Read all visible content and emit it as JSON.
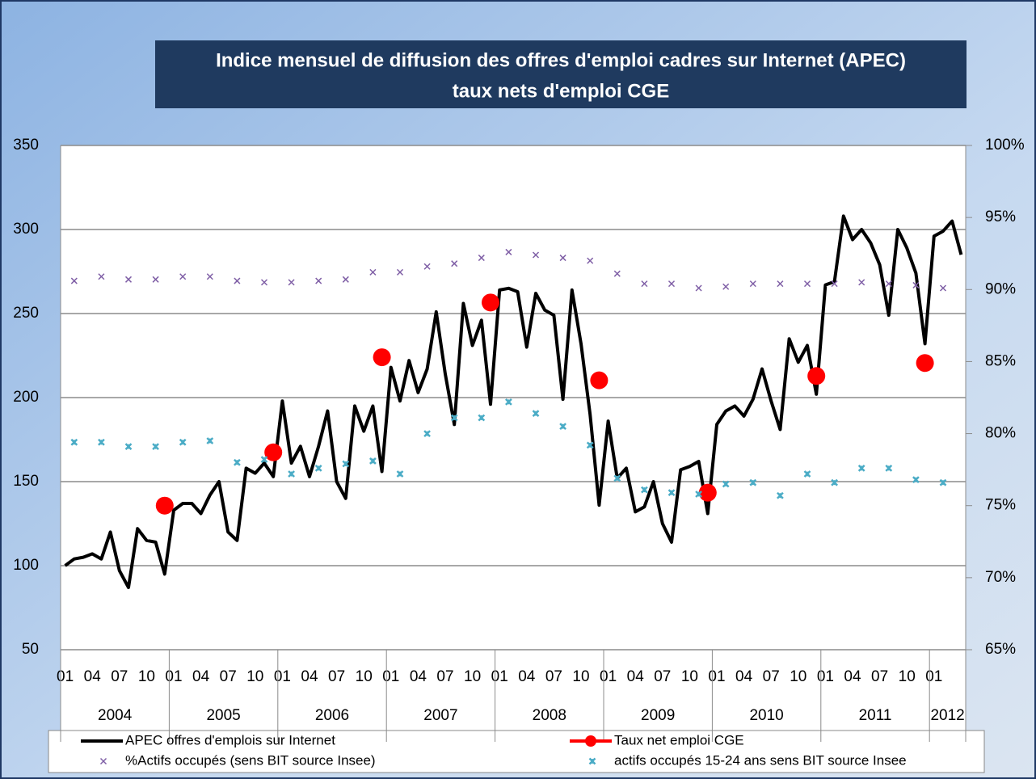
{
  "chart_data": {
    "type": "line",
    "title": [
      "Indice mensuel de diffusion des offres d'emploi cadres sur Internet  (APEC)",
      "taux nets d'emploi CGE"
    ],
    "categories": [
      "01",
      null,
      null,
      "04",
      null,
      null,
      "07",
      null,
      null,
      "10",
      null,
      null,
      "01",
      null,
      null,
      "04",
      null,
      null,
      "07",
      null,
      null,
      "10",
      null,
      null,
      "01",
      null,
      null,
      "04",
      null,
      null,
      "07",
      null,
      null,
      "10",
      null,
      null,
      "01",
      null,
      null,
      "04",
      null,
      null,
      "07",
      null,
      null,
      "10",
      null,
      null,
      "01",
      null,
      null,
      "04",
      null,
      null,
      "07",
      null,
      null,
      "10",
      null,
      null,
      "01",
      null,
      null,
      "04",
      null,
      null,
      "07",
      null,
      null,
      "10",
      null,
      null,
      "01",
      null,
      null,
      "04",
      null,
      null,
      "07",
      null,
      null,
      "10",
      null,
      null,
      "01",
      null,
      null,
      "04",
      null,
      null,
      "07",
      null,
      null,
      "10",
      null,
      null,
      "01",
      null,
      null,
      null
    ],
    "groups": [
      {
        "label": "2004",
        "span": 12
      },
      {
        "label": "2005",
        "span": 12
      },
      {
        "label": "2006",
        "span": 12
      },
      {
        "label": "2007",
        "span": 12
      },
      {
        "label": "2008",
        "span": 12
      },
      {
        "label": "2009",
        "span": 12
      },
      {
        "label": "2010",
        "span": 12
      },
      {
        "label": "2011",
        "span": 12
      },
      {
        "label": "2012",
        "span": 4
      }
    ],
    "ylim": [
      50,
      350
    ],
    "yticks": [
      50,
      100,
      150,
      200,
      250,
      300,
      350
    ],
    "y2lim": [
      65,
      100
    ],
    "y2ticks": [
      {
        "value": 65,
        "label": "65%"
      },
      {
        "value": 70,
        "label": "70%"
      },
      {
        "value": 75,
        "label": "75%"
      },
      {
        "value": 80,
        "label": "80%"
      },
      {
        "value": 85,
        "label": "85%"
      },
      {
        "value": 90,
        "label": "90%"
      },
      {
        "value": 95,
        "label": "95%"
      },
      {
        "value": 100,
        "label": "100%"
      }
    ],
    "grid": true,
    "legend": "bottom",
    "series": [
      {
        "name": "APEC offres d'emplois sur Internet",
        "color": "#000000",
        "marker": "none",
        "values": [
          100,
          104,
          105,
          107,
          104,
          120,
          97,
          87,
          122,
          115,
          114,
          95,
          133,
          137,
          137,
          131,
          142,
          150,
          120,
          115,
          158,
          155,
          161,
          153,
          198,
          161,
          171,
          153,
          171,
          192,
          150,
          140,
          195,
          180,
          195,
          156,
          218,
          198,
          222,
          203,
          217,
          251,
          214,
          184,
          256,
          231,
          246,
          196,
          264,
          265,
          263,
          230,
          262,
          252,
          249,
          199,
          264,
          232,
          190,
          136,
          186,
          152,
          158,
          132,
          135,
          150,
          125,
          114,
          157,
          159,
          162,
          131,
          184,
          192,
          195,
          189,
          199,
          217,
          198,
          181,
          235,
          221,
          231,
          202,
          267,
          269,
          308,
          294,
          300,
          292,
          279,
          249,
          300,
          289,
          274,
          232,
          296,
          299,
          305,
          285
        ]
      },
      {
        "name": "Taux net emploi CGE",
        "color": "#ff0000",
        "axis": "y2",
        "marker": "circle",
        "values": [
          null,
          null,
          null,
          null,
          null,
          null,
          null,
          null,
          null,
          null,
          null,
          75,
          null,
          null,
          null,
          null,
          null,
          null,
          null,
          null,
          null,
          null,
          null,
          78.7,
          null,
          null,
          null,
          null,
          null,
          null,
          null,
          null,
          null,
          null,
          null,
          85.3,
          null,
          null,
          null,
          null,
          null,
          null,
          null,
          null,
          null,
          null,
          null,
          89.1,
          null,
          null,
          null,
          null,
          null,
          null,
          null,
          null,
          null,
          null,
          null,
          83.7,
          null,
          null,
          null,
          null,
          null,
          null,
          null,
          null,
          null,
          null,
          null,
          75.9,
          null,
          null,
          null,
          null,
          null,
          null,
          null,
          null,
          null,
          null,
          null,
          84,
          null,
          null,
          null,
          null,
          null,
          null,
          null,
          null,
          null,
          null,
          null,
          84.9,
          null,
          null,
          null,
          null
        ]
      },
      {
        "name": "%Actifs occupés (sens BIT source Insee)",
        "color": "#7f5fa6",
        "axis": "y2",
        "marker": "x",
        "values": [
          null,
          90.6,
          null,
          null,
          90.9,
          null,
          null,
          90.7,
          null,
          null,
          90.7,
          null,
          null,
          90.9,
          null,
          null,
          90.9,
          null,
          null,
          90.6,
          null,
          null,
          90.5,
          null,
          null,
          90.5,
          null,
          null,
          90.6,
          null,
          null,
          90.7,
          null,
          null,
          91.2,
          null,
          null,
          91.2,
          null,
          null,
          91.6,
          null,
          null,
          91.8,
          null,
          null,
          92.2,
          null,
          null,
          92.6,
          null,
          null,
          92.4,
          null,
          null,
          92.2,
          null,
          null,
          92.0,
          null,
          null,
          91.1,
          null,
          null,
          90.4,
          null,
          null,
          90.4,
          null,
          null,
          90.1,
          null,
          null,
          90.2,
          null,
          null,
          90.4,
          null,
          null,
          90.4,
          null,
          null,
          90.4,
          null,
          null,
          90.4,
          null,
          null,
          90.5,
          null,
          null,
          90.4,
          null,
          null,
          90.3,
          null,
          null,
          90.1,
          null,
          null
        ]
      },
      {
        "name": "actifs occupés 15-24 ans sens BIT source Insee",
        "color": "#4bacc6",
        "axis": "y2",
        "marker": "star",
        "values": [
          null,
          79.4,
          null,
          null,
          79.4,
          null,
          null,
          79.1,
          null,
          null,
          79.1,
          null,
          null,
          79.4,
          null,
          null,
          79.5,
          null,
          null,
          78.0,
          null,
          null,
          78.2,
          null,
          null,
          77.2,
          null,
          null,
          77.6,
          null,
          null,
          77.9,
          null,
          null,
          78.1,
          null,
          null,
          77.2,
          null,
          null,
          80.0,
          null,
          null,
          81.1,
          null,
          null,
          81.1,
          null,
          null,
          82.2,
          null,
          null,
          81.4,
          null,
          null,
          80.5,
          null,
          null,
          79.2,
          null,
          null,
          76.9,
          null,
          null,
          76.1,
          null,
          null,
          75.9,
          null,
          null,
          75.8,
          null,
          null,
          76.5,
          null,
          null,
          76.6,
          null,
          null,
          75.7,
          null,
          null,
          77.2,
          null,
          null,
          76.6,
          null,
          null,
          77.6,
          null,
          null,
          77.6,
          null,
          null,
          76.8,
          null,
          null,
          76.6,
          null,
          null
        ]
      }
    ]
  }
}
